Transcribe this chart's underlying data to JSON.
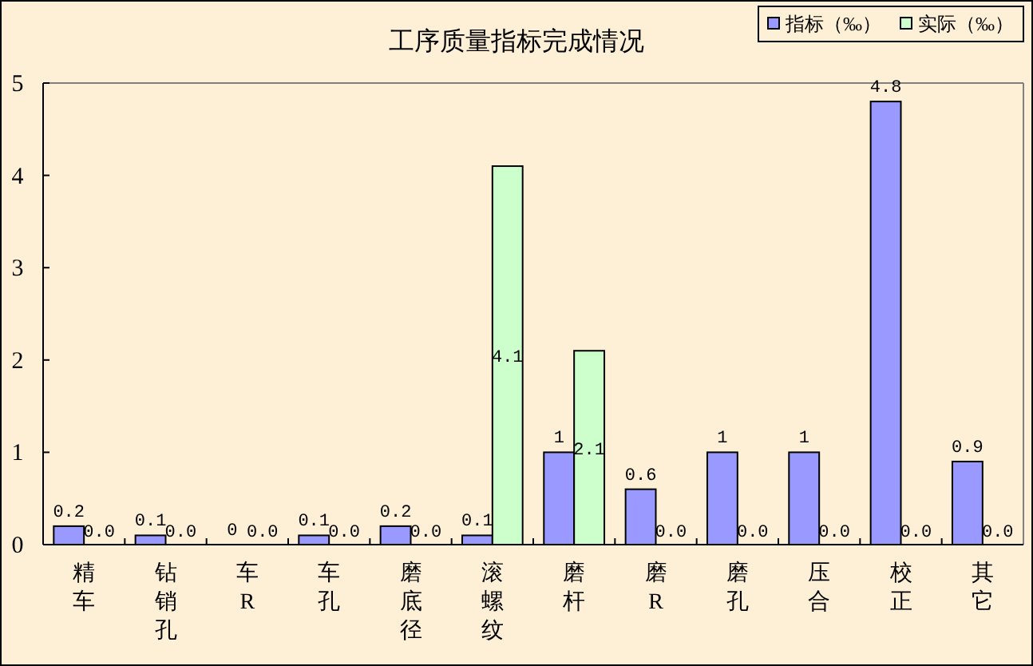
{
  "chart_data": {
    "type": "bar",
    "title": "工序质量指标完成情况",
    "categories": [
      "精车",
      "钻销孔",
      "车R",
      "车孔",
      "磨底径",
      "滚螺纹",
      "磨杆",
      "磨R",
      "磨孔",
      "压合",
      "校正",
      "其它"
    ],
    "series": [
      {
        "name": "指标（‰）",
        "color": "#9999ff",
        "values": [
          0.2,
          0.1,
          0,
          0.1,
          0.2,
          0.1,
          1,
          0.6,
          1,
          1,
          4.8,
          0.9
        ],
        "value_labels": [
          "0.2",
          "0.1",
          "0",
          "0.1",
          "0.2",
          "0.1",
          "1",
          "0.6",
          "1",
          "1",
          "4.8",
          "0.9"
        ]
      },
      {
        "name": "实际（‰）",
        "color": "#ccffcc",
        "values": [
          0,
          0,
          0,
          0,
          0,
          4.1,
          2.1,
          0,
          0,
          0,
          0,
          0
        ],
        "value_labels": [
          "0.0",
          "0.0",
          "0.0",
          "0.0",
          "0.0",
          "4.1",
          "2.1",
          "0.0",
          "0.0",
          "0.0",
          "0.0",
          "0.0"
        ]
      }
    ],
    "ylim": [
      0,
      5
    ],
    "yticks": [
      0,
      1,
      2,
      3,
      4,
      5
    ],
    "legend": "top right"
  }
}
